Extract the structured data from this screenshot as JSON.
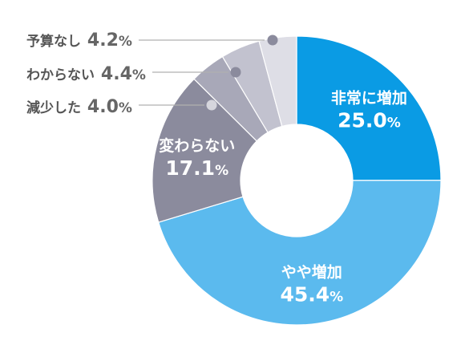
{
  "chart_data": {
    "type": "pie",
    "donut": true,
    "start_angle_deg": 0,
    "direction": "clockwise",
    "slices": [
      {
        "label": "非常に増加",
        "value": 25.0,
        "num": "25.0",
        "pct": "%",
        "color": "#0a9be4",
        "label_pos": "inside"
      },
      {
        "label": "やや増加",
        "value": 45.4,
        "num": "45.4",
        "pct": "%",
        "color": "#5bbaee",
        "label_pos": "inside"
      },
      {
        "label": "変わらない",
        "value": 17.1,
        "num": "17.1",
        "pct": "%",
        "color": "#8b8b9d",
        "label_pos": "inside"
      },
      {
        "label": "減少した",
        "value": 4.0,
        "num": "4.0",
        "pct": "%",
        "color": "#a8a8b8",
        "label_pos": "outside",
        "marker_color": "#d6d6dd"
      },
      {
        "label": "わからない",
        "value": 4.4,
        "num": "4.4",
        "pct": "%",
        "color": "#c2c2cf",
        "label_pos": "outside",
        "marker_color": "#8b8b9d"
      },
      {
        "label": "予算なし",
        "value": 4.2,
        "num": "4.2",
        "pct": "%",
        "color": "#dedee6",
        "label_pos": "outside",
        "marker_color": "#8b8b9d"
      }
    ],
    "leader_line_color": "#b0b0b0"
  }
}
